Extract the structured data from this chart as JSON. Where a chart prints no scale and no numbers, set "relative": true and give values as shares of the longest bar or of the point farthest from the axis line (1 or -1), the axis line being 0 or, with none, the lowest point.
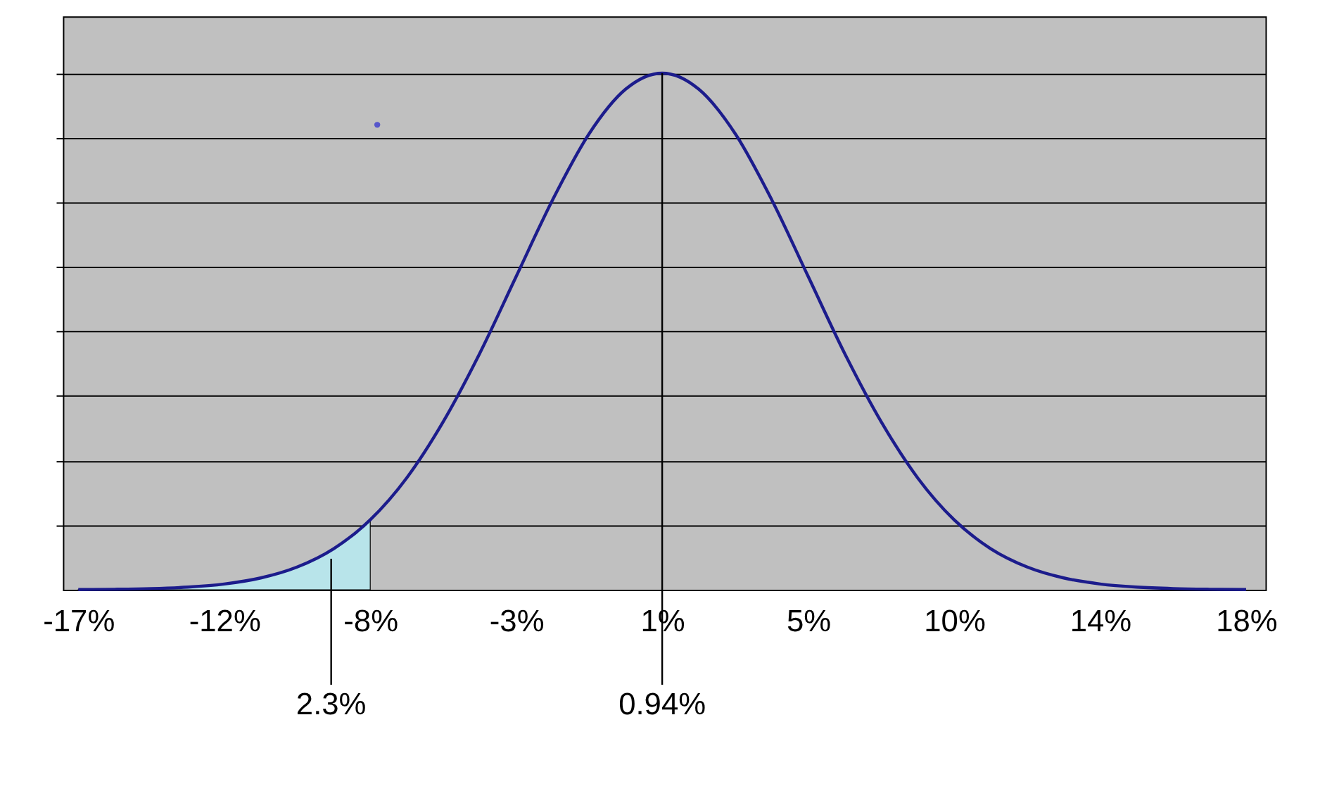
{
  "chart_data": {
    "type": "line",
    "relative": true,
    "grid": "y",
    "xlim": [
      -17.0,
      19.0
    ],
    "xticks": [
      {
        "value": -16.54,
        "label": "-17%"
      },
      {
        "value": -12.17,
        "label": "-12%"
      },
      {
        "value": -7.8,
        "label": "-8%"
      },
      {
        "value": -3.43,
        "label": "-3%"
      },
      {
        "value": 0.94,
        "label": "1%"
      },
      {
        "value": 5.31,
        "label": "5%"
      },
      {
        "value": 9.68,
        "label": "10%"
      },
      {
        "value": 14.05,
        "label": "14%"
      },
      {
        "value": 18.42,
        "label": "18%"
      }
    ],
    "series": [
      {
        "type": "area",
        "color": "#b8e4ea",
        "x": [
          -16.54,
          -15.45,
          -14.36,
          -13.26,
          -12.17,
          -11.08,
          -9.99,
          -8.89,
          -7.8
        ],
        "values": [
          0.0003,
          0.0009,
          0.0022,
          0.0051,
          0.0111,
          0.0228,
          0.0439,
          0.0796,
          0.1353
        ]
      },
      {
        "color": "#1c1c8c",
        "x": [
          -16.54,
          -15.45,
          -14.36,
          -13.26,
          -12.17,
          -11.08,
          -9.99,
          -8.89,
          -7.8,
          -6.71,
          -5.62,
          -4.52,
          -3.43,
          -2.34,
          -1.25,
          -0.15,
          0.94,
          2.03,
          3.13,
          4.22,
          5.31,
          6.4,
          7.5,
          8.59,
          9.68,
          10.77,
          11.87,
          12.96,
          14.05,
          15.14,
          16.24,
          17.33,
          18.42
        ],
        "values": [
          0.0003,
          0.0009,
          0.0022,
          0.0051,
          0.0111,
          0.0228,
          0.0439,
          0.0796,
          0.1353,
          0.2163,
          0.3247,
          0.4578,
          0.6065,
          0.7548,
          0.8825,
          0.9692,
          1.0,
          0.9692,
          0.8825,
          0.7548,
          0.6065,
          0.4578,
          0.3247,
          0.2163,
          0.1353,
          0.0796,
          0.0439,
          0.0228,
          0.0111,
          0.0051,
          0.0022,
          0.0009,
          0.0003
        ]
      },
      {
        "type": "scatter",
        "color": "#2a2ad0",
        "x": [
          -7.59
        ],
        "values": [
          0.9
        ]
      }
    ],
    "ref_lines": [
      {
        "axis": "x",
        "value": 0.94,
        "label": "0.94%",
        "color": "#000000"
      }
    ],
    "annotations": [
      {
        "text": "2.3%",
        "x": -8.97,
        "y": 0.06
      }
    ]
  }
}
